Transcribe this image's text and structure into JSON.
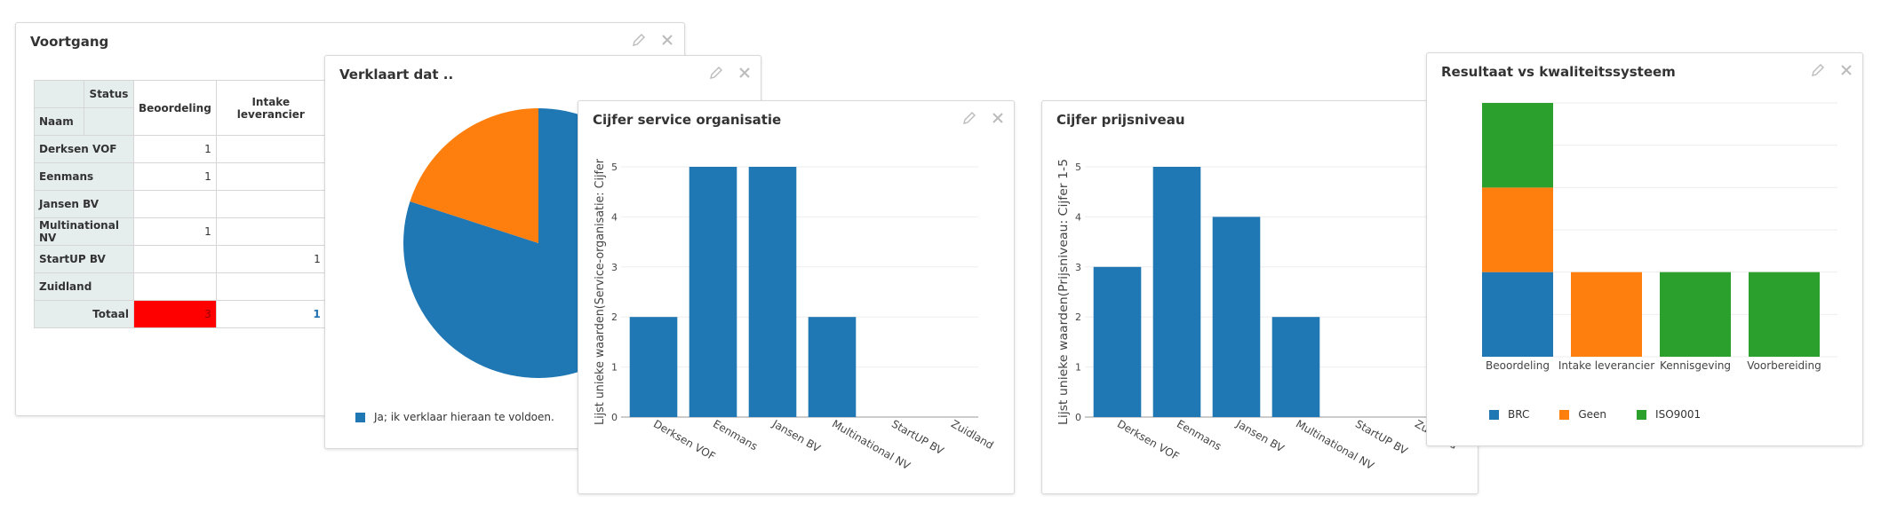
{
  "widget_voortgang": {
    "title": "Voortgang",
    "status_header": "Status",
    "naam_header": "Naam",
    "columns": [
      "Beoordeling",
      "Intake leverancier"
    ],
    "rows": [
      {
        "name": "Derksen VOF",
        "values": [
          "1",
          ""
        ]
      },
      {
        "name": "Eenmans",
        "values": [
          "1",
          ""
        ]
      },
      {
        "name": "Jansen BV",
        "values": [
          "",
          ""
        ]
      },
      {
        "name": "Multinational NV",
        "values": [
          "1",
          ""
        ]
      },
      {
        "name": "StartUP BV",
        "values": [
          "",
          "1"
        ]
      },
      {
        "name": "Zuidland",
        "values": [
          "",
          ""
        ]
      }
    ],
    "total_label": "Totaal",
    "total_values": [
      "3",
      "1"
    ]
  },
  "widget_verklaart": {
    "title": "Verklaart dat ..",
    "legend_label": "Ja; ik verklaar hieraan te voldoen."
  },
  "widget_service": {
    "title": "Cijfer service organisatie"
  },
  "widget_prijs": {
    "title": "Cijfer prijsniveau"
  },
  "widget_resultaat": {
    "title": "Resultaat vs kwaliteitssysteem"
  },
  "colors": {
    "blue": "#1f77b4",
    "orange": "#ff7f0e",
    "green": "#2ca02c",
    "red": "#ff0000",
    "header_bg": "#e5eeed"
  },
  "chart_data": [
    {
      "type": "pie",
      "labels": [
        "Ja; ik verklaar hieraan te voldoen.",
        ""
      ],
      "values": [
        80,
        20
      ],
      "colors": [
        "#1f77b4",
        "#ff7f0e"
      ]
    },
    {
      "type": "bar",
      "title": "Cijfer service organisatie",
      "ylabel": "Lijst unieke waarden(Service-organisatie: Cijfer",
      "categories": [
        "Derksen VOF",
        "Eenmans",
        "Jansen BV",
        "Multinational NV",
        "StartUP BV",
        "Zuidland"
      ],
      "values": [
        2,
        5,
        5,
        2,
        0,
        0
      ],
      "ylim": [
        0,
        5
      ],
      "yticks": [
        "0",
        "1",
        "2",
        "3",
        "4",
        "5"
      ]
    },
    {
      "type": "bar",
      "title": "Cijfer prijsniveau",
      "ylabel": "Lijst unieke waarden(Prijsniveau: Cijfer 1-5",
      "categories": [
        "Derksen VOF",
        "Eenmans",
        "Jansen BV",
        "Multinational NV",
        "StartUP BV",
        "Zuidland"
      ],
      "values": [
        3,
        5,
        4,
        2,
        0,
        0
      ],
      "ylim": [
        0,
        5
      ],
      "yticks": [
        "0",
        "1",
        "2",
        "3",
        "4",
        "5"
      ]
    },
    {
      "type": "bar",
      "stacked": true,
      "title": "Resultaat vs kwaliteitssysteem",
      "categories": [
        "Beoordeling",
        "Intake leverancier",
        "Kennisgeving",
        "Voorbereiding"
      ],
      "series": [
        {
          "name": "BRC",
          "values": [
            1,
            0,
            0,
            0
          ],
          "color": "#1f77b4"
        },
        {
          "name": "Geen",
          "values": [
            1,
            1,
            0,
            0
          ],
          "color": "#ff7f0e"
        },
        {
          "name": "ISO9001",
          "values": [
            1,
            0,
            1,
            1
          ],
          "color": "#2ca02c"
        }
      ],
      "ylim": [
        0,
        3
      ]
    }
  ]
}
